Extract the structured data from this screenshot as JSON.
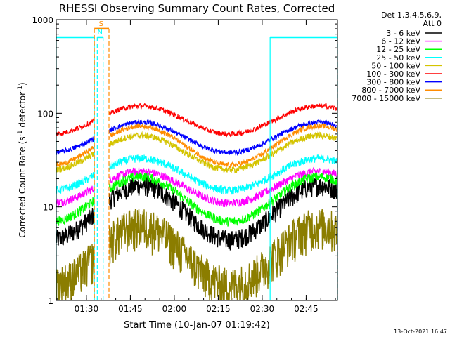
{
  "chart_data": {
    "type": "line",
    "title": "RHESSI Observing Summary Count Rates, Corrected",
    "xlabel": "Start Time (10-Jan-07 01:19:42)",
    "ylabel_main": "Corrected Count Rate (s",
    "ylabel_sup1": "-1",
    "ylabel_mid": " detector",
    "ylabel_sup2": "-1",
    "ylabel_end": ")",
    "y_scale": "log",
    "ylim": [
      1,
      1000
    ],
    "xlim_minutes": [
      0,
      96
    ],
    "x_ticks": [
      {
        "label": "01:30",
        "min": 10.3
      },
      {
        "label": "01:45",
        "min": 25.3
      },
      {
        "label": "02:00",
        "min": 40.3
      },
      {
        "label": "02:15",
        "min": 55.3
      },
      {
        "label": "02:30",
        "min": 70.3
      },
      {
        "label": "02:45",
        "min": 85.3
      }
    ],
    "y_ticks": [
      {
        "label": "1",
        "value": 1
      },
      {
        "label": "10",
        "value": 10
      },
      {
        "label": "100",
        "value": 100
      },
      {
        "label": "1000",
        "value": 1000
      }
    ],
    "legend_header": [
      "Det 1,3,4,5,6,9,",
      "Att 0"
    ],
    "legend_placement": "right",
    "series": [
      {
        "name": "3 - 6 keV",
        "color": "#000000",
        "night_level": 4.5,
        "day_level": 17,
        "noise": 0.12
      },
      {
        "name": "6 - 12 keV",
        "color": "#ff00ff",
        "night_level": 11,
        "day_level": 24,
        "noise": 0.05
      },
      {
        "name": "12 - 25 keV",
        "color": "#00ff00",
        "night_level": 7,
        "day_level": 21,
        "noise": 0.06
      },
      {
        "name": "25 - 50 keV",
        "color": "#00ffff",
        "night_level": 15,
        "day_level": 33,
        "noise": 0.05
      },
      {
        "name": "50 - 100 keV",
        "color": "#d4c400",
        "night_level": 25,
        "day_level": 58,
        "noise": 0.04
      },
      {
        "name": "100 - 300 keV",
        "color": "#ff0000",
        "night_level": 60,
        "day_level": 120,
        "noise": 0.03
      },
      {
        "name": "300 - 800 keV",
        "color": "#0000ff",
        "night_level": 38,
        "day_level": 80,
        "noise": 0.03
      },
      {
        "name": "800 - 7000 keV",
        "color": "#ff8c00",
        "night_level": 28,
        "day_level": 73,
        "noise": 0.03
      },
      {
        "name": "7000 - 15000 keV",
        "color": "#8b7d00",
        "night_level": 1.5,
        "day_level": 6.5,
        "noise": 0.25
      }
    ],
    "gaps_minutes": [
      [
        13,
        18
      ]
    ],
    "saa_bars": [
      {
        "label": "",
        "start_min": 0,
        "end_min": 13,
        "level": 650,
        "color": "#00ffff"
      },
      {
        "label": "S",
        "start_min": 13,
        "end_min": 18,
        "level": 800,
        "color": "#ff8c00"
      },
      {
        "label": "N",
        "start_min": 14,
        "end_min": 16,
        "level": 650,
        "color": "#00ffff"
      },
      {
        "label": "",
        "start_min": 73,
        "end_min": 96,
        "level": 650,
        "color": "#00ffff"
      }
    ],
    "footer_date": "13-Oct-2021 16:47"
  }
}
